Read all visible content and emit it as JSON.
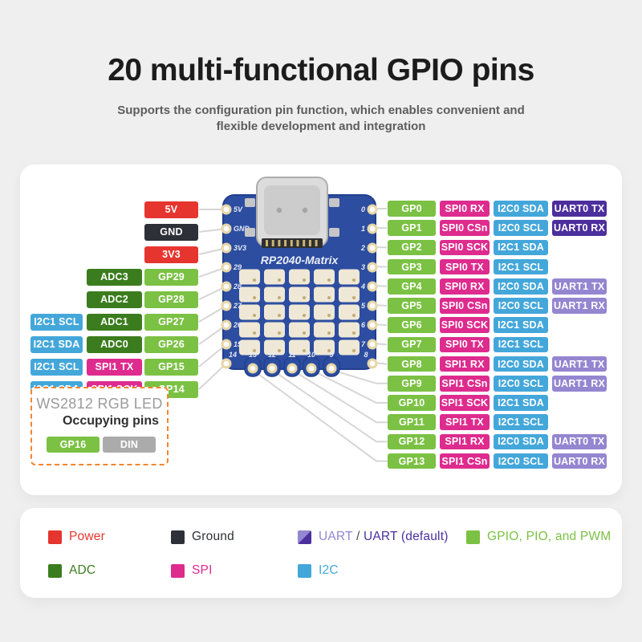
{
  "header": {
    "title": "20 multi-functional GPIO pins",
    "subtitle_line1": "Supports the configuration pin function, which enables convenient and",
    "subtitle_line2": "flexible development and integration"
  },
  "colors": {
    "power": "#e6352f",
    "ground": "#2e3038",
    "gpio": "#7bc143",
    "adc": "#3b7d1e",
    "i2c": "#44a7da",
    "spi": "#de2b8e",
    "uart": "#9486d0",
    "uart_default": "#4c2f9d",
    "din": "#ababab",
    "plain": "#4a4a4a",
    "board_blue": "#2c4da0",
    "board_edge": "#21408d",
    "pad_gold": "#e7d7a8",
    "led_box_border": "#ef8632",
    "connector_line": "#d6d6d6"
  },
  "pinout": {
    "left_rows": [
      {
        "cells": [
          {
            "label": "5V",
            "type": "power"
          }
        ]
      },
      {
        "cells": [
          {
            "label": "GND",
            "type": "ground"
          }
        ]
      },
      {
        "cells": [
          {
            "label": "3V3",
            "type": "power"
          }
        ]
      },
      {
        "cells": [
          {
            "label": "ADC3",
            "type": "adc"
          },
          {
            "label": "GP29",
            "type": "gpio"
          }
        ]
      },
      {
        "cells": [
          {
            "label": "ADC2",
            "type": "adc"
          },
          {
            "label": "GP28",
            "type": "gpio"
          }
        ]
      },
      {
        "cells": [
          {
            "label": "I2C1 SCL",
            "type": "i2c"
          },
          {
            "label": "ADC1",
            "type": "adc"
          },
          {
            "label": "GP27",
            "type": "gpio"
          }
        ]
      },
      {
        "cells": [
          {
            "label": "I2C1 SDA",
            "type": "i2c"
          },
          {
            "label": "ADC0",
            "type": "adc"
          },
          {
            "label": "GP26",
            "type": "gpio"
          }
        ]
      },
      {
        "cells": [
          {
            "label": "I2C1 SCL",
            "type": "i2c"
          },
          {
            "label": "SPI1 TX",
            "type": "spi"
          },
          {
            "label": "GP15",
            "type": "gpio"
          }
        ]
      },
      {
        "cells": [
          {
            "label": "I2C1 SDA",
            "type": "i2c"
          },
          {
            "label": "SPI1 SCK",
            "type": "spi"
          },
          {
            "label": "GP14",
            "type": "gpio"
          }
        ]
      }
    ],
    "right_rows": [
      {
        "cells": [
          {
            "label": "GP0",
            "type": "gpio"
          },
          {
            "label": "SPI0 RX",
            "type": "spi"
          },
          {
            "label": "I2C0 SDA",
            "type": "i2c"
          },
          {
            "label": "UART0 TX",
            "type": "uart_default"
          }
        ]
      },
      {
        "cells": [
          {
            "label": "GP1",
            "type": "gpio"
          },
          {
            "label": "SPI0 CSn",
            "type": "spi"
          },
          {
            "label": "I2C0 SCL",
            "type": "i2c"
          },
          {
            "label": "UART0 RX",
            "type": "uart_default"
          }
        ]
      },
      {
        "cells": [
          {
            "label": "GP2",
            "type": "gpio"
          },
          {
            "label": "SPI0 SCK",
            "type": "spi"
          },
          {
            "label": "I2C1 SDA",
            "type": "i2c"
          }
        ]
      },
      {
        "cells": [
          {
            "label": "GP3",
            "type": "gpio"
          },
          {
            "label": "SPI0 TX",
            "type": "spi"
          },
          {
            "label": "I2C1 SCL",
            "type": "i2c"
          }
        ]
      },
      {
        "cells": [
          {
            "label": "GP4",
            "type": "gpio"
          },
          {
            "label": "SPI0 RX",
            "type": "spi"
          },
          {
            "label": "I2C0 SDA",
            "type": "i2c"
          },
          {
            "label": "UART1 TX",
            "type": "uart"
          }
        ]
      },
      {
        "cells": [
          {
            "label": "GP5",
            "type": "gpio"
          },
          {
            "label": "SPI0 CSn",
            "type": "spi"
          },
          {
            "label": "I2C0 SCL",
            "type": "i2c"
          },
          {
            "label": "UART1 RX",
            "type": "uart"
          }
        ]
      },
      {
        "cells": [
          {
            "label": "GP6",
            "type": "gpio"
          },
          {
            "label": "SPI0 SCK",
            "type": "spi"
          },
          {
            "label": "I2C1 SDA",
            "type": "i2c"
          }
        ]
      },
      {
        "cells": [
          {
            "label": "GP7",
            "type": "gpio"
          },
          {
            "label": "SPI0 TX",
            "type": "spi"
          },
          {
            "label": "I2C1 SCL",
            "type": "i2c"
          }
        ]
      },
      {
        "cells": [
          {
            "label": "GP8",
            "type": "gpio"
          },
          {
            "label": "SPI1 RX",
            "type": "spi"
          },
          {
            "label": "I2C0 SDA",
            "type": "i2c"
          },
          {
            "label": "UART1 TX",
            "type": "uart"
          }
        ]
      },
      {
        "cells": [
          {
            "label": "GP9",
            "type": "gpio"
          },
          {
            "label": "SPI1 CSn",
            "type": "spi"
          },
          {
            "label": "I2C0 SCL",
            "type": "i2c"
          },
          {
            "label": "UART1 RX",
            "type": "uart"
          }
        ]
      },
      {
        "cells": [
          {
            "label": "GP10",
            "type": "gpio"
          },
          {
            "label": "SPI1 SCK",
            "type": "spi"
          },
          {
            "label": "I2C1 SDA",
            "type": "i2c"
          }
        ]
      },
      {
        "cells": [
          {
            "label": "GP11",
            "type": "gpio"
          },
          {
            "label": "SPI1 TX",
            "type": "spi"
          },
          {
            "label": "I2C1 SCL",
            "type": "i2c"
          }
        ]
      },
      {
        "cells": [
          {
            "label": "GP12",
            "type": "gpio"
          },
          {
            "label": "SPI1 RX",
            "type": "spi"
          },
          {
            "label": "I2C0 SDA",
            "type": "i2c"
          },
          {
            "label": "UART0 TX",
            "type": "uart"
          }
        ]
      },
      {
        "cells": [
          {
            "label": "GP13",
            "type": "gpio"
          },
          {
            "label": "SPI1 CSn",
            "type": "spi"
          },
          {
            "label": "I2C0 SCL",
            "type": "i2c"
          },
          {
            "label": "UART0 RX",
            "type": "uart"
          }
        ]
      }
    ],
    "board": {
      "name": "RP2040-Matrix",
      "left_pins": [
        "5V",
        "GND",
        "3V3",
        "29",
        "28",
        "27",
        "26",
        "15"
      ],
      "corner_left": "14",
      "right_pins": [
        "0",
        "1",
        "2",
        "3",
        "4",
        "5",
        "6",
        "7"
      ],
      "corner_right": "8",
      "bottom_pins": [
        "13",
        "12",
        "11",
        "10",
        "9"
      ]
    },
    "ws2812": {
      "title": "WS2812 RGB LED",
      "subtitle": "Occupying pins",
      "pins": [
        {
          "label": "GP16",
          "type": "gpio"
        },
        {
          "label": "DIN",
          "type": "din"
        }
      ]
    }
  },
  "legend": {
    "items": [
      {
        "label": "Power",
        "type": "power"
      },
      {
        "label": "Ground",
        "type": "ground"
      },
      {
        "type": "uart_split",
        "label_parts": [
          {
            "text": "UART",
            "type": "uart"
          },
          {
            "text": " / ",
            "type": "plain"
          },
          {
            "text": "UART (default)",
            "type": "uart_default"
          }
        ]
      },
      {
        "label": "GPIO, PIO, and PWM",
        "type": "gpio"
      },
      {
        "label": "ADC",
        "type": "adc"
      },
      {
        "label": "SPI",
        "type": "spi"
      },
      {
        "label": "I2C",
        "type": "i2c"
      }
    ]
  }
}
